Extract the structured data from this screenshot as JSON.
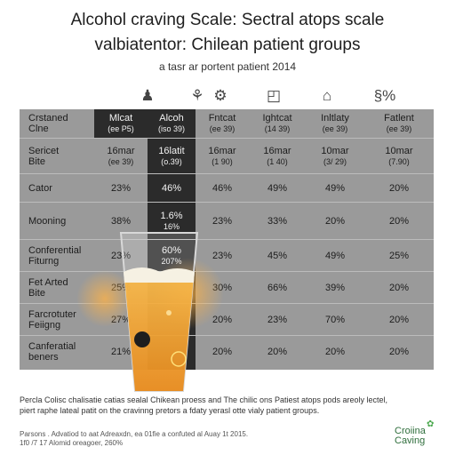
{
  "header": {
    "title_line1": "Alcohol craving Scale: Sectral atops scale",
    "title_line2": "valbiatentor: Chilean patient groups",
    "subtitle": "a tasr ar portent patient 2014"
  },
  "icons": [
    "person-icon",
    "group-icon",
    "",
    "",
    "home-icon",
    "percent-icon"
  ],
  "icon_glyphs": [
    "♟",
    "⚘",
    "",
    "",
    "⌂",
    "§%"
  ],
  "chart_data": {
    "type": "table",
    "columns": [
      {
        "name": "Mlcat",
        "sub": "(ee P5)"
      },
      {
        "name": "Alcoh",
        "sub": "(iso 39)"
      },
      {
        "name": "Fntcat",
        "sub": "(ee 39)"
      },
      {
        "name": "Ightcat",
        "sub": "(14 39)"
      },
      {
        "name": "Inltlaty",
        "sub": "(ee 39)"
      },
      {
        "name": "Fatlent",
        "sub": "(ee 39)"
      }
    ],
    "header_row_label": [
      "Crstaned",
      "Clne"
    ],
    "rows": [
      {
        "label": [
          "Sericet",
          "Bite"
        ],
        "values": [
          [
            "16mar",
            "(ee 39)"
          ],
          [
            "16latit",
            "(o.39)"
          ],
          [
            "16mar",
            "(1 90)"
          ],
          [
            "16mar",
            "(1 40)"
          ],
          [
            "10mar",
            "(3/ 29)"
          ],
          [
            "10mar",
            "(7.90)"
          ]
        ]
      },
      {
        "label": [
          "Cator"
        ],
        "values": [
          [
            "23%"
          ],
          [
            "46%"
          ],
          [
            "46%"
          ],
          [
            "49%"
          ],
          [
            "49%"
          ],
          [
            "20%"
          ]
        ]
      },
      {
        "label": [
          "Mooning"
        ],
        "values": [
          [
            "38%"
          ],
          [
            "1.6%",
            "16%"
          ],
          [
            "23%"
          ],
          [
            "33%"
          ],
          [
            "20%"
          ],
          [
            "20%"
          ]
        ]
      },
      {
        "label": [
          "Conferential",
          "Fiturng"
        ],
        "values": [
          [
            "23%"
          ],
          [
            "60%",
            "207%"
          ],
          [
            "23%"
          ],
          [
            "45%"
          ],
          [
            "49%"
          ],
          [
            "25%"
          ]
        ]
      },
      {
        "label": [
          "Fet Arted",
          "Bite"
        ],
        "values": [
          [
            "25%"
          ],
          [
            ""
          ],
          [
            "30%"
          ],
          [
            "66%"
          ],
          [
            "39%"
          ],
          [
            "20%"
          ]
        ]
      },
      {
        "label": [
          "Farcrotuter",
          "Feiigng"
        ],
        "values": [
          [
            "27%"
          ],
          [
            ""
          ],
          [
            "20%"
          ],
          [
            "23%"
          ],
          [
            "70%"
          ],
          [
            "20%"
          ]
        ]
      },
      {
        "label": [
          "Canferatial",
          "beners"
        ],
        "values": [
          [
            "21%"
          ],
          [
            ""
          ],
          [
            "20%"
          ],
          [
            "20%"
          ],
          [
            "20%"
          ],
          [
            "20%"
          ]
        ]
      }
    ]
  },
  "footnote": {
    "line1": "Percla Colisc chalisatie catias sealal Chikean proess and The chilic ons Patiest atops pods areoly lectel,",
    "line2": "piert raphe lateal patit on the cravinng pretors a fdaty yerasl otte vialy patient groups."
  },
  "credit": {
    "line1": "Parsons . Advatiod to aat Adreaxdn, ea 01fie a confuted al Auay 1t 2015.",
    "line2": "1f0 /7 17 Alomid oreagoer, 260%"
  },
  "logo": {
    "line1": "Croiina",
    "line2": "Caving"
  },
  "colors": {
    "table_bg": "#9a9a9a",
    "dark_col": "#2b2b2b",
    "beer": "#f2a323",
    "foam": "#f6f1e3"
  }
}
